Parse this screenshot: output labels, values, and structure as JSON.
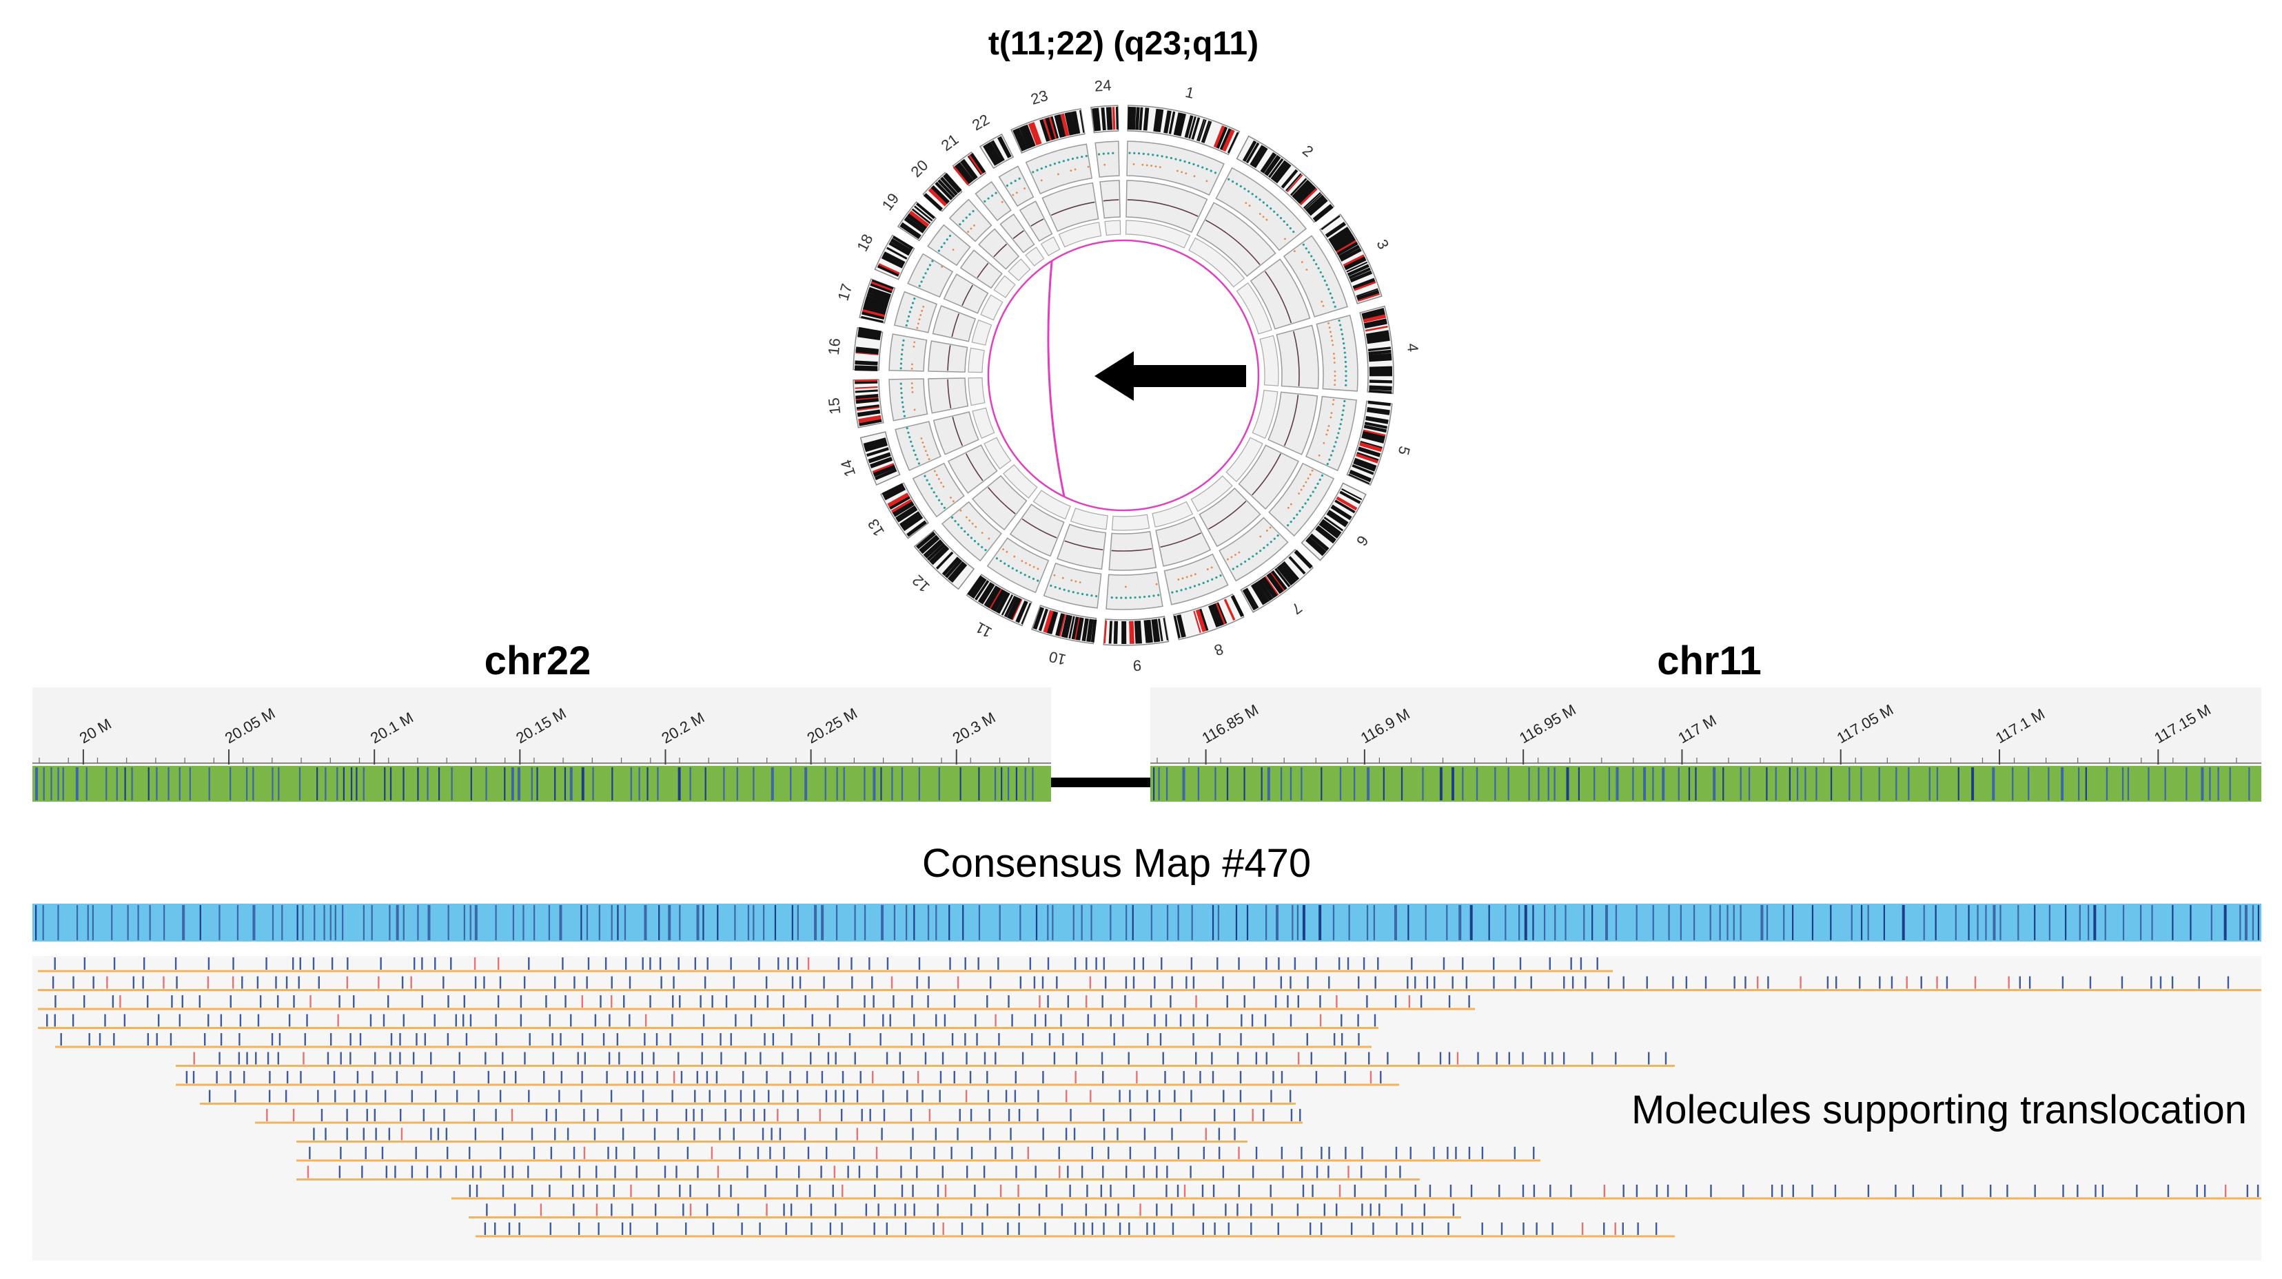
{
  "circos": {
    "title": "t(11;22) (q23;q11)",
    "chromosomes": [
      "1",
      "2",
      "3",
      "4",
      "5",
      "6",
      "7",
      "8",
      "9",
      "10",
      "11",
      "12",
      "13",
      "14",
      "15",
      "16",
      "17",
      "18",
      "19",
      "20",
      "21",
      "22",
      "23",
      "24"
    ],
    "link_color": "#e040c0",
    "arrow_color": "#000000"
  },
  "chr22": {
    "title": "chr22",
    "ticks": [
      "20 M",
      "20.05 M",
      "20.1 M",
      "20.15 M",
      "20.2 M",
      "20.25 M",
      "20.3 M"
    ],
    "bar_color": "#7ab648"
  },
  "chr11": {
    "title": "chr11",
    "ticks": [
      "116.85 M",
      "116.9 M",
      "116.95 M",
      "117 M",
      "117.05 M",
      "117.1 M",
      "117.15 M"
    ],
    "bar_color": "#7ab648"
  },
  "consensus": {
    "title": "Consensus Map #470",
    "bar_color": "#6ac4ec"
  },
  "molecules": {
    "title": "Molecules supporting translocation",
    "line_color": "#f2b35a",
    "label_color": "#3d5a9e",
    "mismatch_color": "#e57373"
  }
}
